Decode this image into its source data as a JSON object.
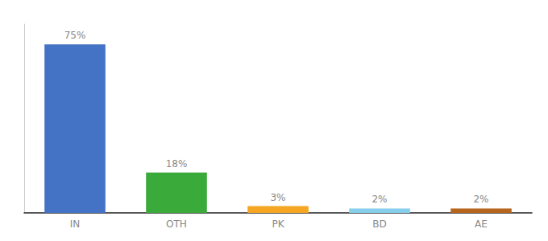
{
  "chart_data": {
    "type": "bar",
    "categories": [
      "IN",
      "OTH",
      "PK",
      "BD",
      "AE"
    ],
    "values": [
      75,
      18,
      3,
      2,
      2
    ],
    "value_labels": [
      "75%",
      "18%",
      "3%",
      "2%",
      "2%"
    ],
    "colors": [
      "#4472c4",
      "#3aab3a",
      "#f5a623",
      "#87ceeb",
      "#b5651d"
    ],
    "ylim": [
      0,
      84
    ],
    "data_labels": true,
    "grid": false,
    "tick_labels": "x"
  }
}
